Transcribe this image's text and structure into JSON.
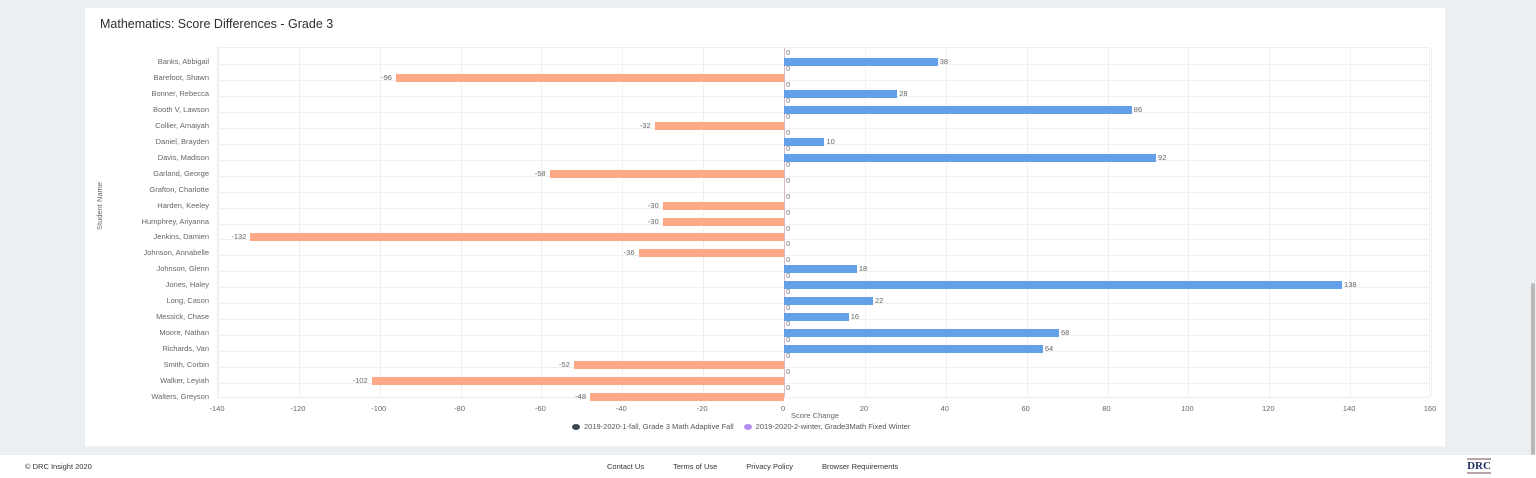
{
  "card": {
    "title": "Mathematics: Score Differences - Grade 3"
  },
  "chart_data": {
    "type": "bar",
    "orientation": "horizontal",
    "title": "Mathematics: Score Differences - Grade 3",
    "xlabel": "Score Change",
    "ylabel": "Student Name",
    "xlim": [
      -140,
      160
    ],
    "xticks": [
      -140,
      -120,
      -100,
      -80,
      -60,
      -40,
      -20,
      0,
      20,
      40,
      60,
      80,
      100,
      120,
      140,
      160
    ],
    "grid": true,
    "legend_position": "bottom",
    "categories": [
      "Banks, Abbigail",
      "Barefoot, Shawn",
      "Bonner, Rebecca",
      "Booth V, Lawson",
      "Collier, Amaiyah",
      "Daniel, Brayden",
      "Davis, Madison",
      "Garland, George",
      "Grafton, Charlotte",
      "Harden, Keeley",
      "Humphrey, Ariyanna",
      "Jenkins, Damien",
      "Johnson, Annabelle",
      "Johnson, Glenn",
      "Jones, Haley",
      "Long, Cason",
      "Messick, Chase",
      "Moore, Nathan",
      "Richards, Van",
      "Smith, Corbin",
      "Walker, Leyiah",
      "Walters, Greyson"
    ],
    "series": [
      {
        "name": "2019-2020-1-fall, Grade 3 Math Adaptive Fall",
        "color": "#3a4650",
        "values": [
          0,
          0,
          0,
          0,
          0,
          0,
          0,
          0,
          0,
          0,
          0,
          0,
          0,
          0,
          0,
          0,
          0,
          0,
          0,
          0,
          0,
          0
        ]
      },
      {
        "name": "2019-2020-2-winter, Grade3Math Fixed Winter",
        "color": "#b28ef0",
        "values": [
          38,
          -96,
          28,
          86,
          -32,
          10,
          92,
          -58,
          0,
          -30,
          -30,
          -132,
          -36,
          18,
          138,
          22,
          16,
          68,
          64,
          -52,
          -102,
          -48
        ]
      }
    ],
    "bar_colors": {
      "positive": "#62a0ea",
      "negative": "#ffa986"
    }
  },
  "footer": {
    "copyright": "© DRC Insight 2020",
    "links": [
      "Contact Us",
      "Terms of Use",
      "Privacy Policy",
      "Browser Requirements"
    ],
    "logo": "DRC"
  }
}
